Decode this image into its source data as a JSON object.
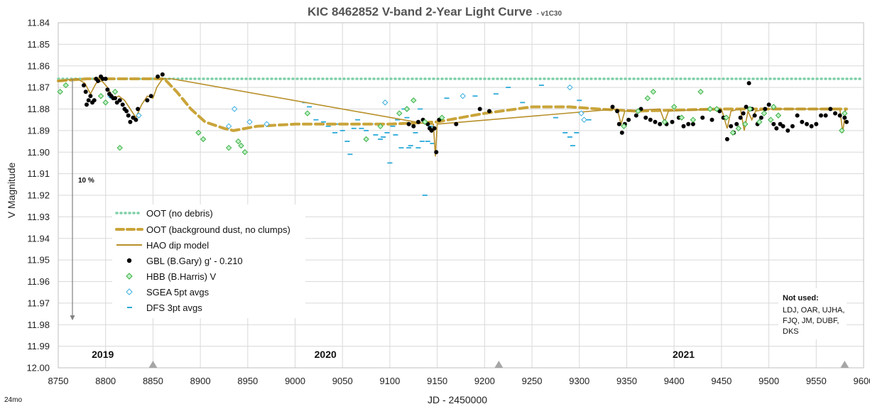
{
  "chart_data": {
    "type": "scatter",
    "title": "KIC 8462852 V-band 2-Year Light Curve",
    "title_suffix": "- v1C30",
    "xlabel": "JD - 2450000",
    "ylabel": "V Magnitude",
    "corner_label": "24mo",
    "xlim": [
      8750,
      9600
    ],
    "ylim": [
      12.0,
      11.84
    ],
    "y_inverted": true,
    "x_ticks": [
      8750,
      8800,
      8850,
      8900,
      8950,
      9000,
      9050,
      9100,
      9150,
      9200,
      9250,
      9300,
      9350,
      9400,
      9450,
      9500,
      9550,
      9600
    ],
    "y_ticks": [
      "11.84",
      "11.85",
      "11.86",
      "11.87",
      "11.88",
      "11.89",
      "11.90",
      "11.91",
      "11.92",
      "11.93",
      "11.94",
      "11.95",
      "11.96",
      "11.97",
      "11.98",
      "11.99",
      "12.00"
    ],
    "grid": true,
    "legend_position": "left",
    "colors": {
      "oot_clean": "#7fcfa8",
      "oot_dust": "#c9a43a",
      "dip_model": "#b8902a",
      "gbl": "#000000",
      "hbb": "#3cb043",
      "sgea": "#3aaee0",
      "dfs": "#2aa9d8",
      "gridline": "#d9d9d9",
      "annotation": "#808080"
    },
    "legend": [
      {
        "key": "oot_clean",
        "label": "OOT (no debris)"
      },
      {
        "key": "oot_dust",
        "label": "OOT (background dust, no clumps)"
      },
      {
        "key": "dip_model",
        "label": "HAO dip model"
      },
      {
        "key": "gbl",
        "label": "GBL (B.Gary) g' - 0.210"
      },
      {
        "key": "hbb",
        "label": "HBB (B.Harris) V"
      },
      {
        "key": "sgea",
        "label": "SGEA 5pt avgs"
      },
      {
        "key": "dfs",
        "label": "DFS  3pt avgs"
      }
    ],
    "annotations": {
      "scale_arrow": {
        "x": 8765,
        "y_from": 11.866,
        "y_to": 11.978,
        "label": "10 %"
      },
      "years": [
        {
          "label": "2019",
          "x": 8797
        },
        {
          "label": "2020",
          "x": 9032
        },
        {
          "label": "2021",
          "x": 9410
        }
      ],
      "year_markers_x": [
        8850,
        9215,
        9580
      ],
      "not_used_title": "Not used:",
      "not_used_lines": [
        "LDJ, OAR, UJHA,",
        "FJQ, JM, DUBF,",
        "DKS"
      ]
    },
    "series": [
      {
        "key": "oot_clean",
        "style": "dotted-line",
        "values": [
          [
            8750,
            11.866
          ],
          [
            9600,
            11.866
          ]
        ]
      },
      {
        "key": "oot_dust",
        "style": "dashed-line",
        "values": [
          [
            8750,
            11.867
          ],
          [
            8780,
            11.866
          ],
          [
            8820,
            11.866
          ],
          [
            8862,
            11.866
          ],
          [
            8875,
            11.872
          ],
          [
            8890,
            11.88
          ],
          [
            8905,
            11.886
          ],
          [
            8925,
            11.889
          ],
          [
            8935,
            11.89
          ],
          [
            8960,
            11.888
          ],
          [
            9000,
            11.887
          ],
          [
            9050,
            11.887
          ],
          [
            9100,
            11.887
          ],
          [
            9150,
            11.886
          ],
          [
            9200,
            11.882
          ],
          [
            9250,
            11.879
          ],
          [
            9290,
            11.879
          ],
          [
            9320,
            11.88
          ],
          [
            9360,
            11.881
          ],
          [
            9400,
            11.8805
          ],
          [
            9450,
            11.88
          ],
          [
            9500,
            11.88
          ],
          [
            9550,
            11.88
          ],
          [
            9582,
            11.88
          ]
        ]
      },
      {
        "key": "dip_model",
        "style": "line",
        "values": [
          [
            8750,
            11.867
          ],
          [
            8770,
            11.866
          ],
          [
            8778,
            11.868
          ],
          [
            8784,
            11.873
          ],
          [
            8790,
            11.868
          ],
          [
            8796,
            11.867
          ],
          [
            8802,
            11.87
          ],
          [
            8808,
            11.875
          ],
          [
            8814,
            11.874
          ],
          [
            8820,
            11.876
          ],
          [
            8826,
            11.88
          ],
          [
            8832,
            11.884
          ],
          [
            8838,
            11.878
          ],
          [
            8844,
            11.874
          ],
          [
            8850,
            11.875
          ],
          [
            8854,
            11.87
          ],
          [
            8860,
            11.866
          ],
          [
            8870,
            11.866
          ],
          [
            9140,
            11.887
          ],
          [
            9146,
            11.887
          ],
          [
            9148,
            11.902
          ],
          [
            9150,
            11.887
          ],
          [
            9340,
            11.88
          ],
          [
            9344,
            11.887
          ],
          [
            9348,
            11.881
          ],
          [
            9385,
            11.88
          ],
          [
            9390,
            11.886
          ],
          [
            9394,
            11.881
          ],
          [
            9450,
            11.88
          ],
          [
            9456,
            11.889
          ],
          [
            9460,
            11.881
          ],
          [
            9470,
            11.88
          ],
          [
            9474,
            11.89
          ],
          [
            9478,
            11.881
          ],
          [
            9482,
            11.885
          ],
          [
            9486,
            11.881
          ],
          [
            9500,
            11.88
          ],
          [
            9575,
            11.88
          ],
          [
            9578,
            11.891
          ],
          [
            9581,
            11.88
          ]
        ]
      },
      {
        "key": "gbl",
        "style": "dot",
        "values": [
          [
            8777,
            11.869
          ],
          [
            8779,
            11.872
          ],
          [
            8780,
            11.878
          ],
          [
            8782,
            11.876
          ],
          [
            8784,
            11.874
          ],
          [
            8786,
            11.877
          ],
          [
            8788,
            11.876
          ],
          [
            8790,
            11.866
          ],
          [
            8792,
            11.867
          ],
          [
            8795,
            11.865
          ],
          [
            8797,
            11.866
          ],
          [
            8800,
            11.866
          ],
          [
            8802,
            11.871
          ],
          [
            8804,
            11.873
          ],
          [
            8806,
            11.874
          ],
          [
            8808,
            11.875
          ],
          [
            8810,
            11.875
          ],
          [
            8812,
            11.877
          ],
          [
            8815,
            11.876
          ],
          [
            8818,
            11.878
          ],
          [
            8820,
            11.88
          ],
          [
            8822,
            11.881
          ],
          [
            8824,
            11.883
          ],
          [
            8826,
            11.886
          ],
          [
            8829,
            11.884
          ],
          [
            8832,
            11.885
          ],
          [
            8834,
            11.88
          ],
          [
            8844,
            11.876
          ],
          [
            8848,
            11.874
          ],
          [
            8855,
            11.865
          ],
          [
            8860,
            11.864
          ],
          [
            9120,
            11.887
          ],
          [
            9125,
            11.888
          ],
          [
            9130,
            11.886
          ],
          [
            9135,
            11.885
          ],
          [
            9140,
            11.887
          ],
          [
            9142,
            11.889
          ],
          [
            9144,
            11.89
          ],
          [
            9147,
            11.889
          ],
          [
            9149,
            11.9
          ],
          [
            9152,
            11.885
          ],
          [
            9170,
            11.887
          ],
          [
            9195,
            11.88
          ],
          [
            9205,
            11.881
          ],
          [
            9335,
            11.879
          ],
          [
            9340,
            11.881
          ],
          [
            9342,
            11.887
          ],
          [
            9345,
            11.891
          ],
          [
            9348,
            11.887
          ],
          [
            9352,
            11.885
          ],
          [
            9360,
            11.883
          ],
          [
            9365,
            11.88
          ],
          [
            9370,
            11.884
          ],
          [
            9375,
            11.885
          ],
          [
            9380,
            11.886
          ],
          [
            9385,
            11.887
          ],
          [
            9392,
            11.887
          ],
          [
            9398,
            11.886
          ],
          [
            9405,
            11.884
          ],
          [
            9410,
            11.888
          ],
          [
            9415,
            11.887
          ],
          [
            9420,
            11.887
          ],
          [
            9430,
            11.884
          ],
          [
            9440,
            11.885
          ],
          [
            9448,
            11.881
          ],
          [
            9452,
            11.884
          ],
          [
            9456,
            11.894
          ],
          [
            9460,
            11.888
          ],
          [
            9463,
            11.891
          ],
          [
            9466,
            11.887
          ],
          [
            9470,
            11.884
          ],
          [
            9473,
            11.882
          ],
          [
            9476,
            11.879
          ],
          [
            9479,
            11.868
          ],
          [
            9482,
            11.88
          ],
          [
            9485,
            11.883
          ],
          [
            9488,
            11.887
          ],
          [
            9492,
            11.884
          ],
          [
            9496,
            11.88
          ],
          [
            9500,
            11.878
          ],
          [
            9505,
            11.887
          ],
          [
            9508,
            11.889
          ],
          [
            9512,
            11.887
          ],
          [
            9515,
            11.888
          ],
          [
            9520,
            11.89
          ],
          [
            9525,
            11.888
          ],
          [
            9530,
            11.883
          ],
          [
            9535,
            11.886
          ],
          [
            9540,
            11.887
          ],
          [
            9545,
            11.888
          ],
          [
            9550,
            11.887
          ],
          [
            9555,
            11.883
          ],
          [
            9560,
            11.883
          ],
          [
            9565,
            11.88
          ],
          [
            9570,
            11.882
          ],
          [
            9575,
            11.883
          ],
          [
            9580,
            11.884
          ],
          [
            9582,
            11.886
          ]
        ]
      },
      {
        "key": "hbb",
        "style": "diamond",
        "values": [
          [
            8752,
            11.872
          ],
          [
            8758,
            11.869
          ],
          [
            8795,
            11.874
          ],
          [
            8800,
            11.877
          ],
          [
            8815,
            11.898
          ],
          [
            8810,
            11.872
          ],
          [
            8898,
            11.891
          ],
          [
            8903,
            11.894
          ],
          [
            8930,
            11.898
          ],
          [
            8940,
            11.895
          ],
          [
            8943,
            11.897
          ],
          [
            8947,
            11.9
          ],
          [
            9013,
            11.882
          ],
          [
            9075,
            11.894
          ],
          [
            9090,
            11.888
          ],
          [
            9110,
            11.882
          ],
          [
            9118,
            11.88
          ],
          [
            9125,
            11.876
          ],
          [
            9137,
            11.886
          ],
          [
            9155,
            11.884
          ],
          [
            9347,
            11.888
          ],
          [
            9362,
            11.881
          ],
          [
            9372,
            11.875
          ],
          [
            9378,
            11.872
          ],
          [
            9390,
            11.886
          ],
          [
            9400,
            11.879
          ],
          [
            9408,
            11.884
          ],
          [
            9420,
            11.885
          ],
          [
            9428,
            11.872
          ],
          [
            9438,
            11.88
          ],
          [
            9445,
            11.88
          ],
          [
            9455,
            11.884
          ],
          [
            9462,
            11.891
          ],
          [
            9468,
            11.889
          ],
          [
            9475,
            11.887
          ],
          [
            9480,
            11.88
          ],
          [
            9490,
            11.886
          ],
          [
            9495,
            11.882
          ],
          [
            9502,
            11.885
          ],
          [
            9505,
            11.879
          ],
          [
            9510,
            11.883
          ],
          [
            9577,
            11.89
          ],
          [
            9580,
            11.882
          ]
        ]
      },
      {
        "key": "sgea",
        "style": "diamond",
        "values": [
          [
            8805,
            11.874
          ],
          [
            8835,
            11.883
          ],
          [
            8930,
            11.888
          ],
          [
            8936,
            11.88
          ],
          [
            8952,
            11.886
          ],
          [
            8970,
            11.887
          ],
          [
            9095,
            11.877
          ],
          [
            9118,
            11.88
          ],
          [
            9177,
            11.874
          ],
          [
            9290,
            11.87
          ],
          [
            9302,
            11.882
          ],
          [
            9305,
            11.885
          ]
        ]
      },
      {
        "key": "dfs",
        "style": "dash",
        "values": [
          [
            9010,
            11.877
          ],
          [
            9015,
            11.879
          ],
          [
            9022,
            11.885
          ],
          [
            9030,
            11.886
          ],
          [
            9035,
            11.888
          ],
          [
            9042,
            11.891
          ],
          [
            9045,
            11.887
          ],
          [
            9050,
            11.89
          ],
          [
            9055,
            11.895
          ],
          [
            9058,
            11.901
          ],
          [
            9062,
            11.889
          ],
          [
            9066,
            11.885
          ],
          [
            9070,
            11.889
          ],
          [
            9075,
            11.89
          ],
          [
            9080,
            11.887
          ],
          [
            9085,
            11.892
          ],
          [
            9090,
            11.894
          ],
          [
            9093,
            11.893
          ],
          [
            9097,
            11.891
          ],
          [
            9100,
            11.905
          ],
          [
            9103,
            11.888
          ],
          [
            9106,
            11.892
          ],
          [
            9108,
            11.885
          ],
          [
            9112,
            11.898
          ],
          [
            9115,
            11.88
          ],
          [
            9118,
            11.884
          ],
          [
            9120,
            11.898
          ],
          [
            9122,
            11.897
          ],
          [
            9127,
            11.891
          ],
          [
            9130,
            11.898
          ],
          [
            9132,
            11.88
          ],
          [
            9134,
            11.895
          ],
          [
            9137,
            11.92
          ],
          [
            9140,
            11.895
          ],
          [
            9143,
            11.888
          ],
          [
            9145,
            11.896
          ],
          [
            9160,
            11.875
          ],
          [
            9190,
            11.874
          ],
          [
            9212,
            11.873
          ],
          [
            9225,
            11.87
          ],
          [
            9240,
            11.877
          ],
          [
            9260,
            11.869
          ],
          [
            9275,
            11.884
          ],
          [
            9285,
            11.891
          ],
          [
            9290,
            11.893
          ],
          [
            9293,
            11.897
          ],
          [
            9297,
            11.891
          ],
          [
            9300,
            11.876
          ],
          [
            9310,
            11.885
          ]
        ]
      }
    ]
  }
}
